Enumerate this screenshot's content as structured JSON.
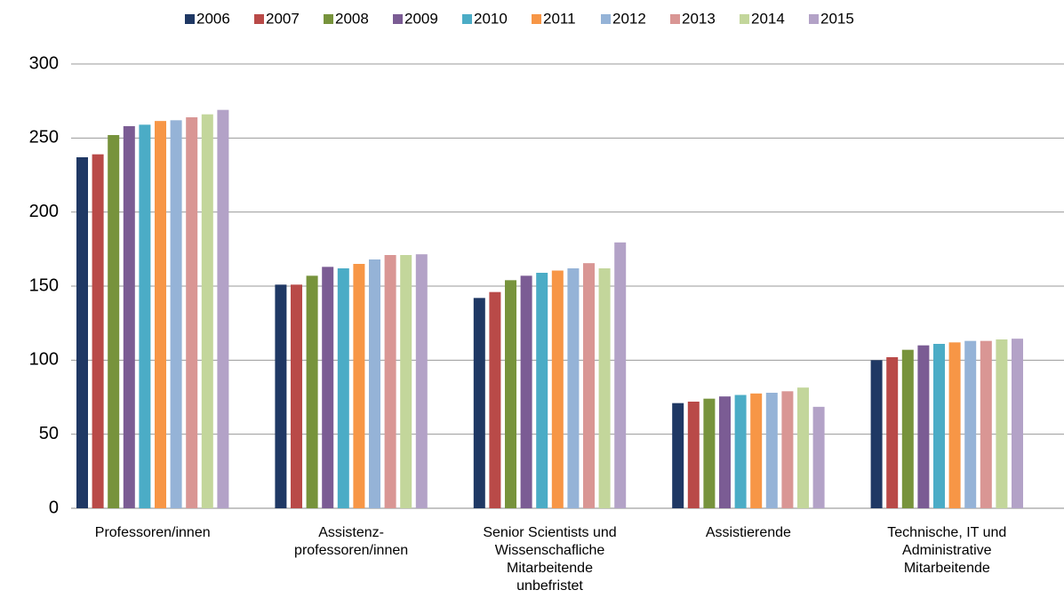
{
  "chart_data": {
    "type": "bar",
    "categories": [
      "Professoren/innen",
      "Assistenz-\nprofessoren/innen",
      "Senior Scientists und\nWissenschafliche\nMitarbeitende\nunbefristet",
      "Assistierende",
      "Technische, IT und\nAdministrative\nMitarbeitende"
    ],
    "series": [
      {
        "name": "2006",
        "color": "#1f3864",
        "values": [
          237,
          151,
          142,
          71,
          100
        ]
      },
      {
        "name": "2007",
        "color": "#b94a48",
        "values": [
          239,
          151,
          146,
          72,
          102
        ]
      },
      {
        "name": "2008",
        "color": "#77933c",
        "values": [
          252,
          157,
          154,
          74,
          107
        ]
      },
      {
        "name": "2009",
        "color": "#7b5c94",
        "values": [
          258,
          163,
          157,
          75.5,
          110
        ]
      },
      {
        "name": "2010",
        "color": "#4bacc6",
        "values": [
          259,
          162,
          159,
          76.5,
          111
        ]
      },
      {
        "name": "2011",
        "color": "#f79646",
        "values": [
          261.5,
          165,
          160.5,
          77.5,
          112
        ]
      },
      {
        "name": "2012",
        "color": "#95b3d7",
        "values": [
          262,
          168,
          162,
          78,
          113
        ]
      },
      {
        "name": "2013",
        "color": "#d99694",
        "values": [
          264,
          171,
          165.5,
          79,
          113
        ]
      },
      {
        "name": "2014",
        "color": "#c3d69b",
        "values": [
          266,
          171,
          162,
          81.5,
          114
        ]
      },
      {
        "name": "2015",
        "color": "#b3a2c7",
        "values": [
          269,
          171.5,
          179.5,
          68.5,
          114.5
        ]
      }
    ],
    "ylim": [
      0,
      300
    ],
    "yticks": [
      0,
      50,
      100,
      150,
      200,
      250,
      300
    ],
    "grid": true,
    "legend": "top"
  }
}
